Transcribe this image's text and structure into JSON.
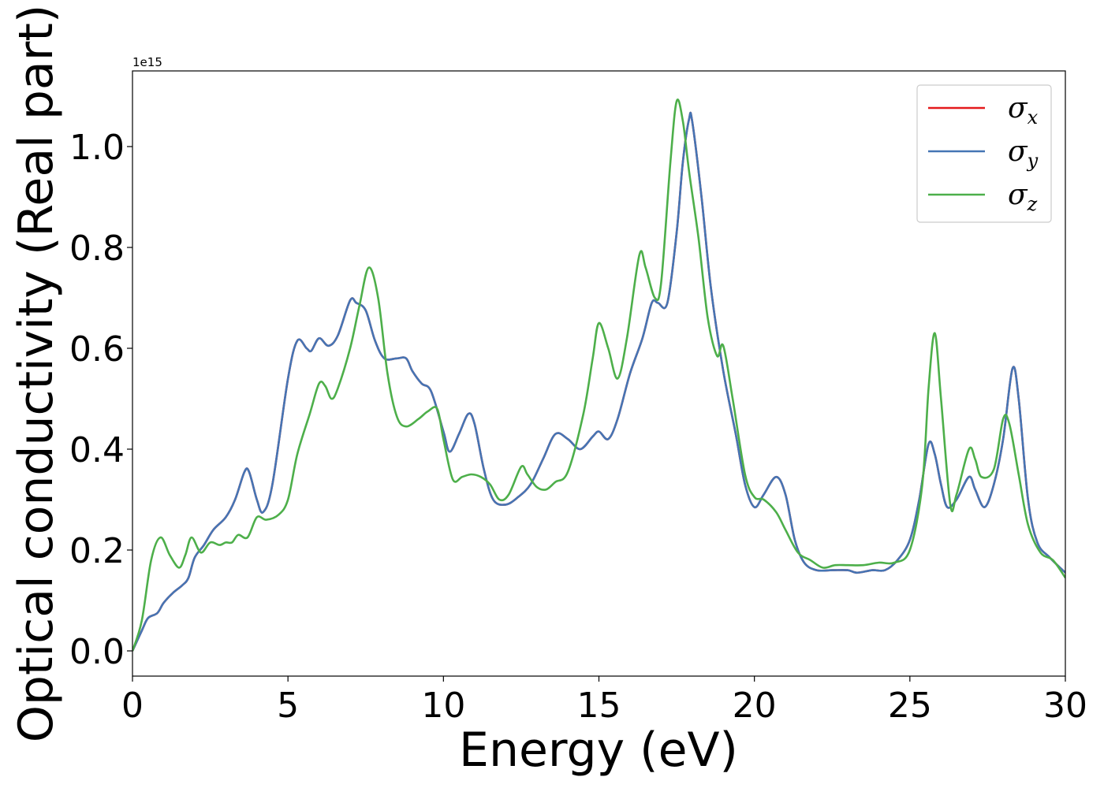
{
  "chart_data": {
    "type": "line",
    "xlabel": "Energy (eV)",
    "ylabel": "Optical conductivity (Real part)",
    "y_offset_label": "1e15",
    "xlim": [
      0,
      30
    ],
    "ylim": [
      -0.05,
      1.15
    ],
    "x_ticks": [
      0,
      5,
      10,
      15,
      20,
      25,
      30
    ],
    "x_tick_labels": [
      "0",
      "5",
      "10",
      "15",
      "20",
      "25",
      "30"
    ],
    "y_ticks": [
      0.0,
      0.2,
      0.4,
      0.6,
      0.8,
      1.0
    ],
    "y_tick_labels": [
      "0.0",
      "0.2",
      "0.4",
      "0.6",
      "0.8",
      "1.0"
    ],
    "grid": false,
    "legend_position": "top-right",
    "series": [
      {
        "name": "σx",
        "symbol": "σ",
        "subscript": "x",
        "color": "#e41a1c",
        "points": [
          [
            0,
            0
          ],
          [
            0.3,
            0.04
          ],
          [
            0.5,
            0.065
          ],
          [
            0.8,
            0.075
          ],
          [
            1.0,
            0.095
          ],
          [
            1.3,
            0.115
          ],
          [
            1.6,
            0.13
          ],
          [
            1.8,
            0.145
          ],
          [
            2.0,
            0.185
          ],
          [
            2.3,
            0.21
          ],
          [
            2.6,
            0.24
          ],
          [
            3.0,
            0.265
          ],
          [
            3.3,
            0.3
          ],
          [
            3.6,
            0.355
          ],
          [
            3.75,
            0.355
          ],
          [
            4.0,
            0.3
          ],
          [
            4.2,
            0.275
          ],
          [
            4.5,
            0.33
          ],
          [
            5.0,
            0.54
          ],
          [
            5.3,
            0.615
          ],
          [
            5.6,
            0.6
          ],
          [
            5.75,
            0.595
          ],
          [
            6.0,
            0.62
          ],
          [
            6.3,
            0.605
          ],
          [
            6.6,
            0.625
          ],
          [
            7.0,
            0.695
          ],
          [
            7.2,
            0.69
          ],
          [
            7.5,
            0.675
          ],
          [
            7.8,
            0.615
          ],
          [
            8.1,
            0.58
          ],
          [
            8.5,
            0.58
          ],
          [
            8.8,
            0.58
          ],
          [
            9.0,
            0.555
          ],
          [
            9.3,
            0.53
          ],
          [
            9.6,
            0.515
          ],
          [
            10.0,
            0.435
          ],
          [
            10.2,
            0.395
          ],
          [
            10.5,
            0.43
          ],
          [
            10.8,
            0.47
          ],
          [
            11.0,
            0.45
          ],
          [
            11.3,
            0.36
          ],
          [
            11.6,
            0.3
          ],
          [
            12.0,
            0.29
          ],
          [
            12.4,
            0.305
          ],
          [
            12.8,
            0.33
          ],
          [
            13.2,
            0.38
          ],
          [
            13.6,
            0.43
          ],
          [
            14.0,
            0.42
          ],
          [
            14.4,
            0.4
          ],
          [
            14.8,
            0.425
          ],
          [
            15.0,
            0.435
          ],
          [
            15.3,
            0.42
          ],
          [
            15.6,
            0.46
          ],
          [
            16.0,
            0.55
          ],
          [
            16.4,
            0.62
          ],
          [
            16.7,
            0.69
          ],
          [
            16.9,
            0.69
          ],
          [
            17.2,
            0.69
          ],
          [
            17.5,
            0.83
          ],
          [
            17.7,
            0.97
          ],
          [
            17.9,
            1.055
          ],
          [
            18.0,
            1.05
          ],
          [
            18.3,
            0.9
          ],
          [
            18.6,
            0.72
          ],
          [
            19.0,
            0.555
          ],
          [
            19.4,
            0.43
          ],
          [
            19.7,
            0.33
          ],
          [
            20.0,
            0.285
          ],
          [
            20.3,
            0.31
          ],
          [
            20.7,
            0.345
          ],
          [
            21.0,
            0.31
          ],
          [
            21.3,
            0.22
          ],
          [
            21.6,
            0.175
          ],
          [
            22.0,
            0.16
          ],
          [
            22.5,
            0.16
          ],
          [
            23.0,
            0.16
          ],
          [
            23.3,
            0.155
          ],
          [
            23.8,
            0.16
          ],
          [
            24.2,
            0.16
          ],
          [
            24.6,
            0.18
          ],
          [
            25.0,
            0.22
          ],
          [
            25.3,
            0.3
          ],
          [
            25.6,
            0.41
          ],
          [
            25.8,
            0.39
          ],
          [
            26.0,
            0.33
          ],
          [
            26.2,
            0.285
          ],
          [
            26.5,
            0.3
          ],
          [
            26.9,
            0.345
          ],
          [
            27.1,
            0.32
          ],
          [
            27.4,
            0.285
          ],
          [
            27.7,
            0.33
          ],
          [
            28.0,
            0.42
          ],
          [
            28.3,
            0.56
          ],
          [
            28.5,
            0.5
          ],
          [
            28.8,
            0.3
          ],
          [
            29.1,
            0.215
          ],
          [
            29.5,
            0.185
          ],
          [
            30.0,
            0.155
          ]
        ]
      },
      {
        "name": "σy",
        "symbol": "σ",
        "subscript": "y",
        "color": "#4575b4",
        "points": [
          [
            0,
            0
          ],
          [
            0.3,
            0.04
          ],
          [
            0.5,
            0.065
          ],
          [
            0.8,
            0.075
          ],
          [
            1.0,
            0.095
          ],
          [
            1.3,
            0.115
          ],
          [
            1.6,
            0.13
          ],
          [
            1.8,
            0.145
          ],
          [
            2.0,
            0.185
          ],
          [
            2.3,
            0.21
          ],
          [
            2.6,
            0.24
          ],
          [
            3.0,
            0.265
          ],
          [
            3.3,
            0.3
          ],
          [
            3.6,
            0.355
          ],
          [
            3.75,
            0.355
          ],
          [
            4.0,
            0.3
          ],
          [
            4.2,
            0.275
          ],
          [
            4.5,
            0.33
          ],
          [
            5.0,
            0.54
          ],
          [
            5.3,
            0.615
          ],
          [
            5.6,
            0.6
          ],
          [
            5.75,
            0.595
          ],
          [
            6.0,
            0.62
          ],
          [
            6.3,
            0.605
          ],
          [
            6.6,
            0.625
          ],
          [
            7.0,
            0.695
          ],
          [
            7.2,
            0.69
          ],
          [
            7.5,
            0.675
          ],
          [
            7.8,
            0.615
          ],
          [
            8.1,
            0.58
          ],
          [
            8.5,
            0.58
          ],
          [
            8.8,
            0.58
          ],
          [
            9.0,
            0.555
          ],
          [
            9.3,
            0.53
          ],
          [
            9.6,
            0.515
          ],
          [
            10.0,
            0.435
          ],
          [
            10.2,
            0.395
          ],
          [
            10.5,
            0.43
          ],
          [
            10.8,
            0.47
          ],
          [
            11.0,
            0.45
          ],
          [
            11.3,
            0.36
          ],
          [
            11.6,
            0.3
          ],
          [
            12.0,
            0.29
          ],
          [
            12.4,
            0.305
          ],
          [
            12.8,
            0.33
          ],
          [
            13.2,
            0.38
          ],
          [
            13.6,
            0.43
          ],
          [
            14.0,
            0.42
          ],
          [
            14.4,
            0.4
          ],
          [
            14.8,
            0.425
          ],
          [
            15.0,
            0.435
          ],
          [
            15.3,
            0.42
          ],
          [
            15.6,
            0.46
          ],
          [
            16.0,
            0.55
          ],
          [
            16.4,
            0.62
          ],
          [
            16.7,
            0.69
          ],
          [
            16.9,
            0.69
          ],
          [
            17.2,
            0.69
          ],
          [
            17.5,
            0.83
          ],
          [
            17.7,
            0.97
          ],
          [
            17.9,
            1.055
          ],
          [
            18.0,
            1.05
          ],
          [
            18.3,
            0.9
          ],
          [
            18.6,
            0.72
          ],
          [
            19.0,
            0.555
          ],
          [
            19.4,
            0.43
          ],
          [
            19.7,
            0.33
          ],
          [
            20.0,
            0.285
          ],
          [
            20.3,
            0.31
          ],
          [
            20.7,
            0.345
          ],
          [
            21.0,
            0.31
          ],
          [
            21.3,
            0.22
          ],
          [
            21.6,
            0.175
          ],
          [
            22.0,
            0.16
          ],
          [
            22.5,
            0.16
          ],
          [
            23.0,
            0.16
          ],
          [
            23.3,
            0.155
          ],
          [
            23.8,
            0.16
          ],
          [
            24.2,
            0.16
          ],
          [
            24.6,
            0.18
          ],
          [
            25.0,
            0.22
          ],
          [
            25.3,
            0.3
          ],
          [
            25.6,
            0.41
          ],
          [
            25.8,
            0.39
          ],
          [
            26.0,
            0.33
          ],
          [
            26.2,
            0.285
          ],
          [
            26.5,
            0.3
          ],
          [
            26.9,
            0.345
          ],
          [
            27.1,
            0.32
          ],
          [
            27.4,
            0.285
          ],
          [
            27.7,
            0.33
          ],
          [
            28.0,
            0.42
          ],
          [
            28.3,
            0.56
          ],
          [
            28.5,
            0.5
          ],
          [
            28.8,
            0.3
          ],
          [
            29.1,
            0.215
          ],
          [
            29.5,
            0.185
          ],
          [
            30.0,
            0.155
          ]
        ]
      },
      {
        "name": "σz",
        "symbol": "σ",
        "subscript": "z",
        "color": "#4daf4a",
        "points": [
          [
            0,
            0
          ],
          [
            0.3,
            0.06
          ],
          [
            0.6,
            0.18
          ],
          [
            0.9,
            0.225
          ],
          [
            1.2,
            0.19
          ],
          [
            1.5,
            0.165
          ],
          [
            1.7,
            0.19
          ],
          [
            1.9,
            0.225
          ],
          [
            2.2,
            0.195
          ],
          [
            2.5,
            0.215
          ],
          [
            2.8,
            0.21
          ],
          [
            3.0,
            0.215
          ],
          [
            3.2,
            0.215
          ],
          [
            3.4,
            0.23
          ],
          [
            3.7,
            0.225
          ],
          [
            4.0,
            0.265
          ],
          [
            4.3,
            0.26
          ],
          [
            4.7,
            0.27
          ],
          [
            5.0,
            0.3
          ],
          [
            5.3,
            0.39
          ],
          [
            5.7,
            0.47
          ],
          [
            6.0,
            0.53
          ],
          [
            6.2,
            0.525
          ],
          [
            6.4,
            0.5
          ],
          [
            6.6,
            0.52
          ],
          [
            7.0,
            0.6
          ],
          [
            7.3,
            0.685
          ],
          [
            7.6,
            0.76
          ],
          [
            7.9,
            0.7
          ],
          [
            8.2,
            0.55
          ],
          [
            8.5,
            0.465
          ],
          [
            8.8,
            0.445
          ],
          [
            9.2,
            0.46
          ],
          [
            9.5,
            0.475
          ],
          [
            9.8,
            0.48
          ],
          [
            10.0,
            0.42
          ],
          [
            10.3,
            0.34
          ],
          [
            10.6,
            0.345
          ],
          [
            10.9,
            0.35
          ],
          [
            11.2,
            0.345
          ],
          [
            11.5,
            0.33
          ],
          [
            11.8,
            0.3
          ],
          [
            12.1,
            0.31
          ],
          [
            12.5,
            0.365
          ],
          [
            12.7,
            0.35
          ],
          [
            13.0,
            0.325
          ],
          [
            13.3,
            0.32
          ],
          [
            13.6,
            0.335
          ],
          [
            14.0,
            0.355
          ],
          [
            14.5,
            0.47
          ],
          [
            14.8,
            0.58
          ],
          [
            15.0,
            0.65
          ],
          [
            15.3,
            0.6
          ],
          [
            15.6,
            0.54
          ],
          [
            15.9,
            0.62
          ],
          [
            16.3,
            0.785
          ],
          [
            16.5,
            0.76
          ],
          [
            16.8,
            0.7
          ],
          [
            17.0,
            0.73
          ],
          [
            17.3,
            0.97
          ],
          [
            17.5,
            1.09
          ],
          [
            17.7,
            1.05
          ],
          [
            17.9,
            0.95
          ],
          [
            18.2,
            0.82
          ],
          [
            18.5,
            0.66
          ],
          [
            18.8,
            0.585
          ],
          [
            19.0,
            0.605
          ],
          [
            19.3,
            0.5
          ],
          [
            19.7,
            0.35
          ],
          [
            20.0,
            0.305
          ],
          [
            20.3,
            0.3
          ],
          [
            20.7,
            0.275
          ],
          [
            21.0,
            0.24
          ],
          [
            21.4,
            0.195
          ],
          [
            21.8,
            0.18
          ],
          [
            22.2,
            0.165
          ],
          [
            22.6,
            0.17
          ],
          [
            23.0,
            0.17
          ],
          [
            23.5,
            0.17
          ],
          [
            24.0,
            0.175
          ],
          [
            24.5,
            0.175
          ],
          [
            25.0,
            0.2
          ],
          [
            25.4,
            0.33
          ],
          [
            25.6,
            0.52
          ],
          [
            25.8,
            0.63
          ],
          [
            26.0,
            0.5
          ],
          [
            26.3,
            0.29
          ],
          [
            26.5,
            0.31
          ],
          [
            26.9,
            0.4
          ],
          [
            27.1,
            0.38
          ],
          [
            27.3,
            0.345
          ],
          [
            27.7,
            0.36
          ],
          [
            28.0,
            0.46
          ],
          [
            28.2,
            0.45
          ],
          [
            28.5,
            0.35
          ],
          [
            28.8,
            0.25
          ],
          [
            29.2,
            0.195
          ],
          [
            29.6,
            0.18
          ],
          [
            30.0,
            0.145
          ]
        ]
      }
    ]
  }
}
